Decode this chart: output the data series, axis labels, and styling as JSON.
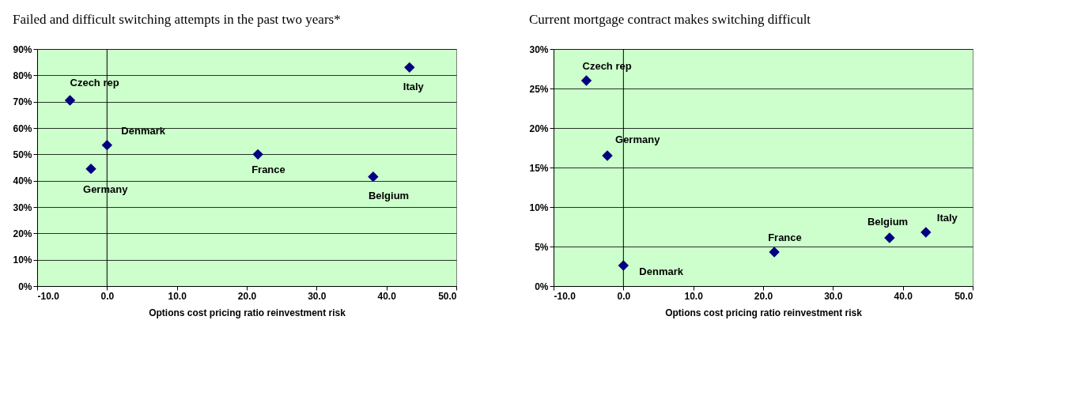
{
  "chart_data": [
    {
      "type": "scatter",
      "title": "Failed and difficult switching attempts in the past two years*",
      "xlabel": "Options cost pricing ratio reinvestment risk",
      "series": [
        {
          "color": "#000080",
          "x": [
            -5.3,
            -2.3,
            0.0,
            21.6,
            38.1,
            43.3
          ],
          "values": [
            70.5,
            44.5,
            53.5,
            50,
            41.5,
            83
          ]
        }
      ],
      "annotations": [
        {
          "text": "Czech rep",
          "x": -5.3,
          "y": 70.5
        },
        {
          "text": "Germany",
          "x": -2.3,
          "y": 44.5
        },
        {
          "text": "Denmark",
          "x": 0.0,
          "y": 53.5
        },
        {
          "text": "France",
          "x": 21.6,
          "y": 50
        },
        {
          "text": "Belgium",
          "x": 38.1,
          "y": 41.5
        },
        {
          "text": "Italy",
          "x": 43.3,
          "y": 83
        }
      ],
      "xlim": [
        -10,
        50
      ],
      "xticks": [
        {
          "value": -10,
          "label": "-10.0"
        },
        {
          "value": 0,
          "label": "0.0"
        },
        {
          "value": 10,
          "label": "10.0"
        },
        {
          "value": 20,
          "label": "20.0"
        },
        {
          "value": 30,
          "label": "30.0"
        },
        {
          "value": 40,
          "label": "40.0"
        },
        {
          "value": 50,
          "label": "50.0"
        }
      ],
      "ylim": [
        0,
        90
      ],
      "yticks": [
        {
          "value": 0,
          "label": "0%"
        },
        {
          "value": 10,
          "label": "10%"
        },
        {
          "value": 20,
          "label": "20%"
        },
        {
          "value": 30,
          "label": "30%"
        },
        {
          "value": 40,
          "label": "40%"
        },
        {
          "value": 50,
          "label": "50%"
        },
        {
          "value": 60,
          "label": "60%"
        },
        {
          "value": 70,
          "label": "70%"
        },
        {
          "value": 80,
          "label": "80%"
        },
        {
          "value": 90,
          "label": "90%"
        }
      ],
      "ref_lines": [
        {
          "axis": "x",
          "value": 0,
          "color": "#000000"
        }
      ],
      "grid": "y",
      "marker": "diamond"
    },
    {
      "type": "scatter",
      "title": "Current mortgage contract makes switching difficult",
      "xlabel": "Options cost pricing ratio reinvestment risk",
      "series": [
        {
          "color": "#000080",
          "x": [
            -5.3,
            -2.3,
            0.0,
            21.6,
            38.1,
            43.3
          ],
          "values": [
            26,
            16.5,
            2.6,
            4.3,
            6.1,
            6.8
          ]
        }
      ],
      "annotations": [
        {
          "text": "Czech rep",
          "x": -5.3,
          "y": 26
        },
        {
          "text": "Germany",
          "x": -2.3,
          "y": 16.5
        },
        {
          "text": "Denmark",
          "x": 0.0,
          "y": 2.6
        },
        {
          "text": "France",
          "x": 21.6,
          "y": 4.3
        },
        {
          "text": "Belgium",
          "x": 38.1,
          "y": 6.1
        },
        {
          "text": "Italy",
          "x": 43.3,
          "y": 6.8
        }
      ],
      "xlim": [
        -10,
        50
      ],
      "xticks": [
        {
          "value": -10,
          "label": "-10.0"
        },
        {
          "value": 0,
          "label": "0.0"
        },
        {
          "value": 10,
          "label": "10.0"
        },
        {
          "value": 20,
          "label": "20.0"
        },
        {
          "value": 30,
          "label": "30.0"
        },
        {
          "value": 40,
          "label": "40.0"
        },
        {
          "value": 50,
          "label": "50.0"
        }
      ],
      "ylim": [
        0,
        30
      ],
      "yticks": [
        {
          "value": 0,
          "label": "0%"
        },
        {
          "value": 5,
          "label": "5%"
        },
        {
          "value": 10,
          "label": "10%"
        },
        {
          "value": 15,
          "label": "15%"
        },
        {
          "value": 20,
          "label": "20%"
        },
        {
          "value": 25,
          "label": "25%"
        },
        {
          "value": 30,
          "label": "30%"
        }
      ],
      "ref_lines": [
        {
          "axis": "x",
          "value": 0,
          "color": "#000000"
        }
      ],
      "grid": "y",
      "marker": "diamond"
    }
  ]
}
